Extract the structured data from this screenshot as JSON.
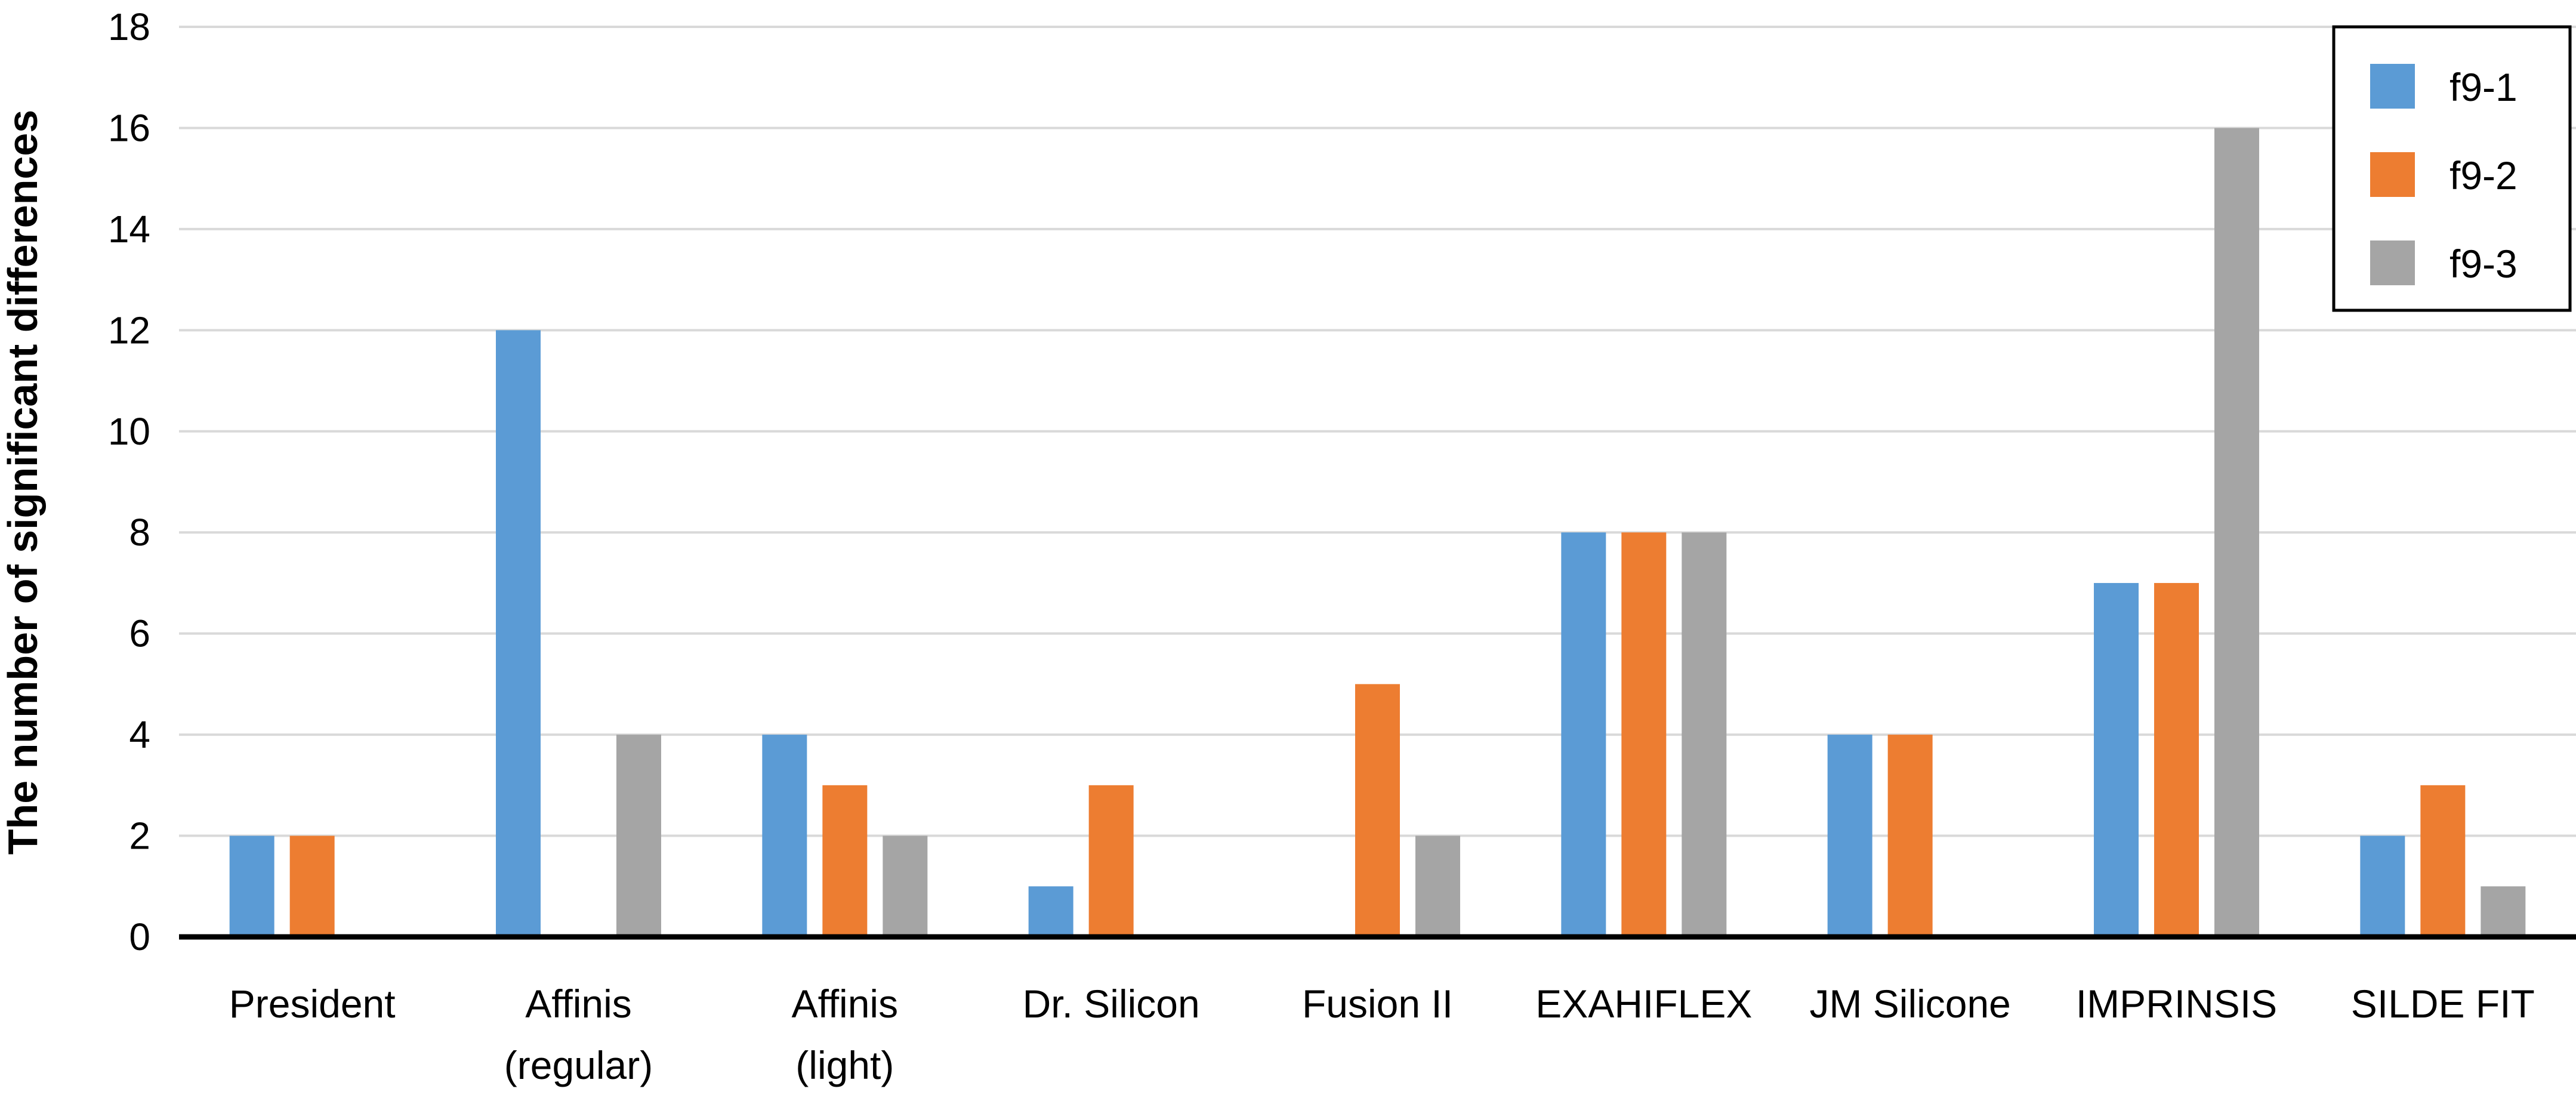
{
  "chart_data": {
    "type": "bar",
    "title": "",
    "xlabel": "",
    "ylabel": "The number of significant differences",
    "ylim": [
      0,
      18
    ],
    "yticks": [
      0,
      2,
      4,
      6,
      8,
      10,
      12,
      14,
      16,
      18
    ],
    "grid": true,
    "legend_position": "top-right",
    "categories": [
      [
        "President"
      ],
      [
        "Affinis",
        "(regular)"
      ],
      [
        "Affinis",
        "(light)"
      ],
      [
        "Dr. Silicon"
      ],
      [
        "Fusion II"
      ],
      [
        "EXAHIFLEX"
      ],
      [
        "JM Silicone"
      ],
      [
        "IMPRINSIS"
      ],
      [
        "SILDE FIT"
      ]
    ],
    "series": [
      {
        "name": "f9-1",
        "color": "#5B9BD5",
        "values": [
          2,
          12,
          4,
          1,
          0,
          8,
          4,
          7,
          2
        ]
      },
      {
        "name": "f9-2",
        "color": "#ED7D31",
        "values": [
          2,
          0,
          3,
          3,
          5,
          8,
          4,
          7,
          3
        ]
      },
      {
        "name": "f9-3",
        "color": "#A5A5A5",
        "values": [
          0,
          4,
          2,
          0,
          2,
          8,
          0,
          16,
          1
        ]
      }
    ]
  }
}
